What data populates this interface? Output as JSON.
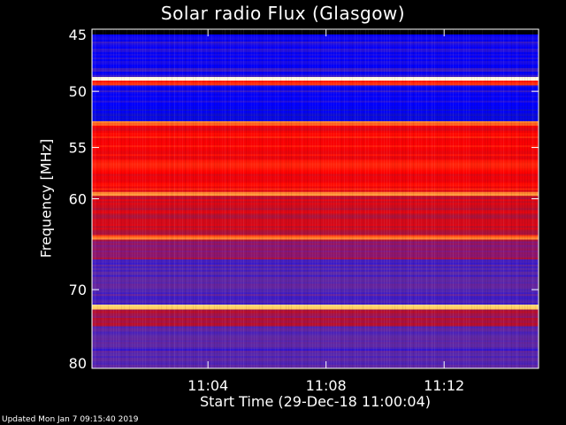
{
  "title": "Solar radio Flux (Glasgow)",
  "footer": "Updated Mon Jan  7 09:15:40 2019",
  "chart_data": {
    "type": "heatmap",
    "title": "Solar radio Flux (Glasgow)",
    "ylabel": "Frequency [MHz]",
    "xlabel": "Start Time (29-Dec-18 11:00:04)",
    "x_ticks": [
      "11:04",
      "11:08",
      "11:12"
    ],
    "x_tick_minutes": [
      4,
      8,
      12
    ],
    "xlim_minutes": [
      0.07,
      15.2
    ],
    "y_ticks": [
      45,
      50,
      55,
      60,
      70,
      80
    ],
    "ylim": [
      45,
      80
    ],
    "y_scale": "log",
    "colormap": [
      "#000000",
      "#1a1aa8",
      "#0000ff",
      "#5c2aa8",
      "#7a1a8a",
      "#b8102a",
      "#ff0000",
      "#ff6a20",
      "#ffd060",
      "#ffffff"
    ],
    "bands": [
      {
        "from": 45.0,
        "to": 45.4,
        "level": 0.0
      },
      {
        "from": 45.4,
        "to": 48.8,
        "level": 0.25
      },
      {
        "from": 48.8,
        "to": 49.1,
        "level": 0.98
      },
      {
        "from": 49.1,
        "to": 49.5,
        "level": 0.72
      },
      {
        "from": 49.5,
        "to": 51.4,
        "level": 0.24
      },
      {
        "from": 51.4,
        "to": 52.6,
        "level": 0.18
      },
      {
        "from": 52.6,
        "to": 53.0,
        "level": 0.8
      },
      {
        "from": 53.0,
        "to": 59.3,
        "level": 0.66
      },
      {
        "from": 59.3,
        "to": 59.7,
        "level": 0.82
      },
      {
        "from": 59.7,
        "to": 63.8,
        "level": 0.58
      },
      {
        "from": 63.8,
        "to": 64.3,
        "level": 0.78
      },
      {
        "from": 64.3,
        "to": 66.5,
        "level": 0.5
      },
      {
        "from": 66.5,
        "to": 71.8,
        "level": 0.34
      },
      {
        "from": 71.8,
        "to": 72.4,
        "level": 0.9
      },
      {
        "from": 72.4,
        "to": 74.5,
        "level": 0.52
      },
      {
        "from": 74.5,
        "to": 80.0,
        "level": 0.32
      }
    ]
  }
}
